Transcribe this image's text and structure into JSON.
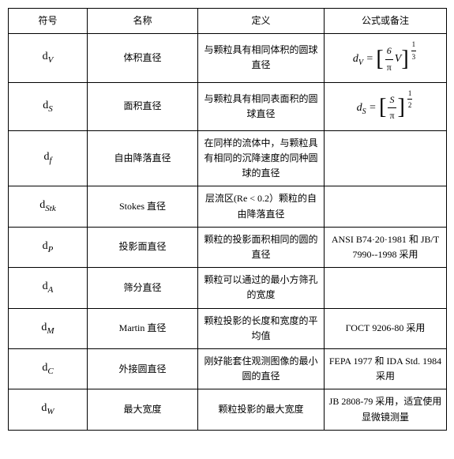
{
  "headers": [
    "符号",
    "名称",
    "定义",
    "公式或备注"
  ],
  "rows": [
    {
      "sym_base": "d",
      "sym_sub": "V",
      "name": "体积直径",
      "def": "与颗粒具有相同体积的圆球直径",
      "formula_type": "frac",
      "f_lhs": "d",
      "f_sub": "V",
      "f_num": "6",
      "f_den": "π",
      "f_mult": "V",
      "f_exp_num": "1",
      "f_exp_den": "3"
    },
    {
      "sym_base": "d",
      "sym_sub": "S",
      "name": "面积直径",
      "def": "与颗粒具有相同表面积的圆球直径",
      "formula_type": "frac",
      "f_lhs": "d",
      "f_sub": "S",
      "f_num": "S",
      "f_den": "π",
      "f_mult": "",
      "f_exp_num": "1",
      "f_exp_den": "2"
    },
    {
      "sym_base": "d",
      "sym_sub": "f",
      "name": "自由降落直径",
      "def": "在同样的流体中，与颗粒具有相同的沉降速度的同种圆球的直径",
      "formula_type": "none",
      "note": ""
    },
    {
      "sym_base": "d",
      "sym_sub": "Stk",
      "name": "Stokes 直径",
      "def": "层流区(Re < 0.2）颗粒的自由降落直径",
      "formula_type": "none",
      "note": ""
    },
    {
      "sym_base": "d",
      "sym_sub": "P",
      "name": "投影面直径",
      "def": "颗粒的投影面积相同的圆的直径",
      "formula_type": "text",
      "note": "ANSI B74·20·1981 和 JB/T 7990--1998 采用"
    },
    {
      "sym_base": "d",
      "sym_sub": "A",
      "name": "筛分直径",
      "def": "颗粒可以通过的最小方筛孔的宽度",
      "formula_type": "none",
      "note": ""
    },
    {
      "sym_base": "d",
      "sym_sub": "M",
      "name": "Martin 直径",
      "def": "颗粒投影的长度和宽度的平均值",
      "formula_type": "text",
      "note": "ГОСТ 9206-80 采用"
    },
    {
      "sym_base": "d",
      "sym_sub": "C",
      "name": "外接圆直径",
      "def": "刚好能套住观测图像的最小圆的直径",
      "formula_type": "text",
      "note": "FEPA 1977 和 IDA Std. 1984 采用"
    },
    {
      "sym_base": "d",
      "sym_sub": "W",
      "name": "最大宽度",
      "def": "颗粒投影的最大宽度",
      "formula_type": "text",
      "note": "JB 2808-79 采用，适宜使用显微镜测量"
    }
  ]
}
